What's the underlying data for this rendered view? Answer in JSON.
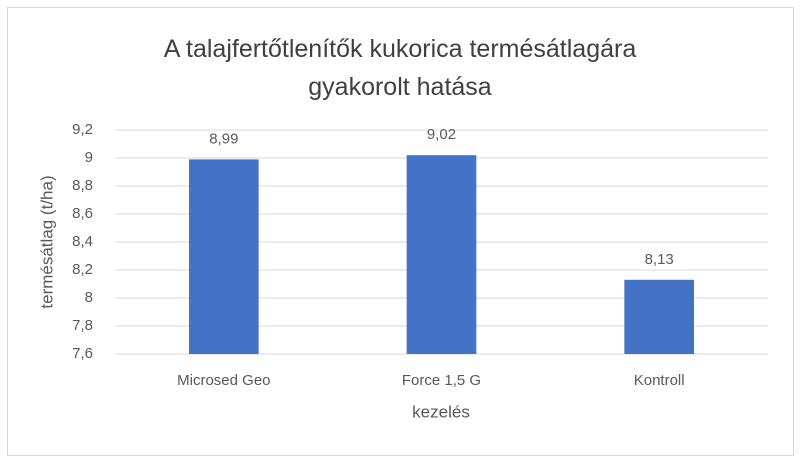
{
  "chart_data": {
    "type": "bar",
    "title": "A talajfertőtlenítők kukorica termésátlagára gyakorolt hatása",
    "x_label": "kezelés",
    "y_label": "termésátlag (t/ha)",
    "categories": [
      "Microsed Geo",
      "Force 1,5 G",
      "Kontroll"
    ],
    "values": [
      8.99,
      9.02,
      8.13
    ],
    "value_labels": [
      "8,99",
      "9,02",
      "8,13"
    ],
    "color": "#4472c4",
    "ylim": [
      7.6,
      9.2
    ],
    "yticks": [
      {
        "value": 7.6,
        "label": "7,6"
      },
      {
        "value": 7.8,
        "label": "7,8"
      },
      8,
      {
        "value": 8.2,
        "label": "8,2"
      },
      {
        "value": 8.4,
        "label": "8,4"
      },
      {
        "value": 8.6,
        "label": "8,6"
      },
      {
        "value": 8.8,
        "label": "8,8"
      },
      9,
      {
        "value": 9.2,
        "label": "9,2"
      }
    ],
    "grid": true
  }
}
